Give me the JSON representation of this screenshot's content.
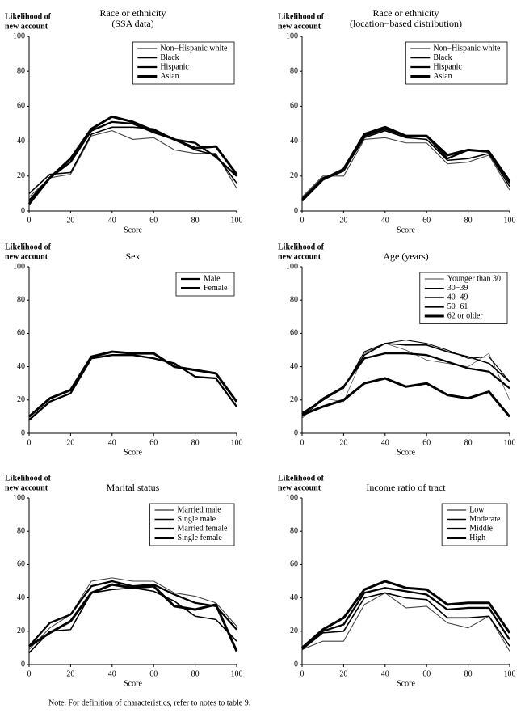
{
  "chart_data": [
    {
      "type": "line",
      "title": "Race or ethnicity",
      "subtitle": "(SSA data)",
      "ylabel": [
        "Likelihood of",
        "new account"
      ],
      "xlabel": "Score",
      "x": [
        0,
        10,
        20,
        30,
        40,
        50,
        60,
        70,
        80,
        90,
        100
      ],
      "xlim": [
        0,
        100
      ],
      "xticks": [
        0,
        20,
        40,
        60,
        80,
        100
      ],
      "ylim": [
        0,
        100
      ],
      "yticks": [
        0,
        20,
        40,
        60,
        80,
        100
      ],
      "legend": "upper right",
      "series": [
        {
          "name": "Non−Hispanic white",
          "color": "#000000",
          "values": [
            8,
            19,
            21,
            43,
            46,
            41,
            42,
            35,
            33,
            33,
            13
          ]
        },
        {
          "name": "Black",
          "color": "#000000",
          "values": [
            10,
            21,
            22,
            44,
            48,
            48,
            47,
            41,
            35,
            32,
            16
          ]
        },
        {
          "name": "Hispanic",
          "color": "#000000",
          "values": [
            6,
            19,
            28,
            46,
            51,
            50,
            45,
            41,
            39,
            31,
            20
          ]
        },
        {
          "name": "Asian",
          "color": "#000000",
          "values": [
            4,
            19,
            30,
            47,
            54,
            51,
            46,
            41,
            36,
            37,
            21
          ]
        }
      ]
    },
    {
      "type": "line",
      "title": "Race or ethnicity",
      "subtitle": "(location−based distribution)",
      "ylabel": [
        "Likelihood of",
        "new account"
      ],
      "xlabel": "Score",
      "x": [
        0,
        10,
        20,
        30,
        40,
        50,
        60,
        70,
        80,
        90,
        100
      ],
      "xlim": [
        0,
        100
      ],
      "xticks": [
        0,
        20,
        40,
        60,
        80,
        100
      ],
      "ylim": [
        0,
        100
      ],
      "yticks": [
        0,
        20,
        40,
        60,
        80,
        100
      ],
      "legend": "upper right",
      "series": [
        {
          "name": "Non−Hispanic white",
          "color": "#000000",
          "values": [
            8,
            20,
            20,
            41,
            42,
            39,
            39,
            27,
            28,
            32,
            12
          ]
        },
        {
          "name": "Black",
          "color": "#000000",
          "values": [
            7,
            19,
            23,
            42,
            46,
            42,
            41,
            29,
            30,
            33,
            14
          ]
        },
        {
          "name": "Hispanic",
          "color": "#000000",
          "values": [
            7,
            18,
            23,
            43,
            47,
            43,
            43,
            30,
            35,
            34,
            16
          ]
        },
        {
          "name": "Asian",
          "color": "#000000",
          "values": [
            6,
            18,
            24,
            44,
            48,
            43,
            43,
            32,
            35,
            34,
            17
          ]
        }
      ]
    },
    {
      "type": "line",
      "title": "Sex",
      "ylabel": [
        "Likelihood of",
        "new account"
      ],
      "xlabel": "Score",
      "x": [
        0,
        10,
        20,
        30,
        40,
        50,
        60,
        70,
        80,
        90,
        100
      ],
      "xlim": [
        0,
        100
      ],
      "xticks": [
        0,
        20,
        40,
        60,
        80,
        100
      ],
      "ylim": [
        0,
        100
      ],
      "yticks": [
        0,
        20,
        40,
        60,
        80,
        100
      ],
      "legend": "upper right",
      "series": [
        {
          "name": "Male",
          "color": "#000000",
          "values": [
            8,
            19,
            24,
            45,
            47,
            47,
            45,
            42,
            34,
            33,
            16
          ]
        },
        {
          "name": "Female",
          "color": "#000000",
          "values": [
            10,
            21,
            26,
            46,
            49,
            48,
            48,
            40,
            38,
            36,
            19
          ]
        }
      ]
    },
    {
      "type": "line",
      "title": "Age (years)",
      "ylabel": [
        "Likelihood of",
        "new account"
      ],
      "xlabel": "Score",
      "x": [
        0,
        10,
        20,
        30,
        40,
        50,
        60,
        70,
        80,
        90,
        100
      ],
      "xlim": [
        0,
        100
      ],
      "xticks": [
        0,
        20,
        40,
        60,
        80,
        100
      ],
      "ylim": [
        0,
        100
      ],
      "yticks": [
        0,
        20,
        40,
        60,
        80,
        100
      ],
      "legend": "upper right",
      "series": [
        {
          "name": "Younger than 30",
          "color": "#000000",
          "values": [
            9,
            21,
            19,
            48,
            54,
            50,
            44,
            42,
            40,
            48,
            20
          ]
        },
        {
          "name": "30−39",
          "color": "#000000",
          "values": [
            10,
            20,
            27,
            49,
            54,
            56,
            54,
            50,
            45,
            46,
            31
          ]
        },
        {
          "name": "40−49",
          "color": "#000000",
          "values": [
            11,
            21,
            28,
            47,
            54,
            53,
            53,
            49,
            46,
            42,
            31
          ]
        },
        {
          "name": "50−61",
          "color": "#000000",
          "values": [
            12,
            20,
            28,
            45,
            48,
            48,
            47,
            43,
            39,
            37,
            27
          ]
        },
        {
          "name": "62 or older",
          "color": "#000000",
          "values": [
            11,
            16,
            20,
            30,
            33,
            28,
            30,
            23,
            21,
            25,
            10
          ]
        }
      ]
    },
    {
      "type": "line",
      "title": "Marital status",
      "ylabel": [
        "Likelihood of",
        "new account"
      ],
      "xlabel": "Score",
      "x": [
        0,
        10,
        20,
        30,
        40,
        50,
        60,
        70,
        80,
        90,
        100
      ],
      "xlim": [
        0,
        100
      ],
      "xticks": [
        0,
        20,
        40,
        60,
        80,
        100
      ],
      "ylim": [
        0,
        100
      ],
      "yticks": [
        0,
        20,
        40,
        60,
        80,
        100
      ],
      "legend": "upper right",
      "series": [
        {
          "name": "Married male",
          "color": "#000000",
          "values": [
            9,
            22,
            30,
            50,
            52,
            50,
            50,
            43,
            41,
            37,
            23
          ]
        },
        {
          "name": "Single male",
          "color": "#000000",
          "values": [
            7,
            20,
            21,
            43,
            45,
            46,
            44,
            38,
            29,
            27,
            14
          ]
        },
        {
          "name": "Married female",
          "color": "#000000",
          "values": [
            11,
            25,
            30,
            47,
            50,
            47,
            48,
            42,
            37,
            35,
            21
          ]
        },
        {
          "name": "Single female",
          "color": "#000000",
          "values": [
            11,
            19,
            26,
            43,
            48,
            46,
            47,
            35,
            33,
            36,
            8
          ]
        }
      ]
    },
    {
      "type": "line",
      "title": "Income ratio of tract",
      "ylabel": [
        "Likelihood of",
        "new account"
      ],
      "xlabel": "Score",
      "x": [
        0,
        10,
        20,
        30,
        40,
        50,
        60,
        70,
        80,
        90,
        100
      ],
      "xlim": [
        0,
        100
      ],
      "xticks": [
        0,
        20,
        40,
        60,
        80,
        100
      ],
      "ylim": [
        0,
        100
      ],
      "yticks": [
        0,
        20,
        40,
        60,
        80,
        100
      ],
      "legend": "upper right",
      "series": [
        {
          "name": "Low",
          "color": "#000000",
          "values": [
            9,
            14,
            14,
            36,
            43,
            34,
            35,
            25,
            22,
            29,
            8
          ]
        },
        {
          "name": "Moderate",
          "color": "#000000",
          "values": [
            9,
            19,
            20,
            40,
            43,
            40,
            39,
            28,
            28,
            29,
            11
          ]
        },
        {
          "name": "Middle",
          "color": "#000000",
          "values": [
            10,
            20,
            24,
            43,
            46,
            44,
            42,
            33,
            34,
            34,
            15
          ]
        },
        {
          "name": "High",
          "color": "#000000",
          "values": [
            10,
            21,
            28,
            45,
            50,
            46,
            45,
            36,
            37,
            37,
            19
          ]
        }
      ]
    }
  ],
  "note": "Note. For definition of characteristics, refer to notes to table 9."
}
